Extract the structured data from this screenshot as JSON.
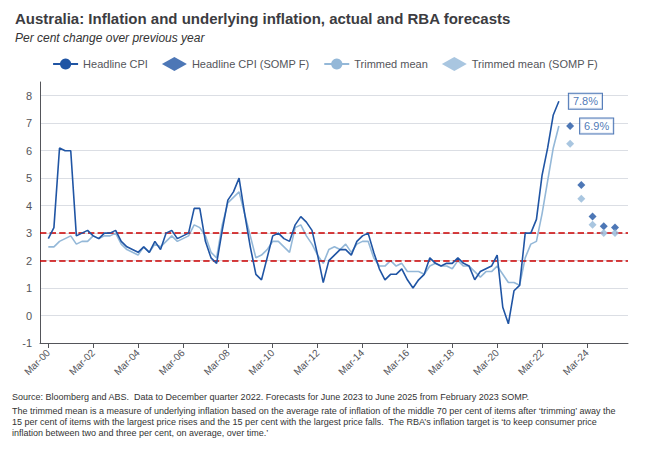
{
  "chart_data": {
    "type": "line",
    "title": "Australia: Inflation and underlying inflation, actual and RBA forecasts",
    "subtitle": "Per cent change over previous year",
    "series": [
      {
        "name": "Headline CPI",
        "type": "line",
        "marker": "none",
        "color": "#2055a4",
        "x": [
          2000.17,
          2000.42,
          2000.67,
          2000.92,
          2001.17,
          2001.42,
          2001.67,
          2001.92,
          2002.17,
          2002.42,
          2002.67,
          2002.92,
          2003.17,
          2003.42,
          2003.67,
          2003.92,
          2004.17,
          2004.42,
          2004.67,
          2004.92,
          2005.17,
          2005.42,
          2005.67,
          2005.92,
          2006.17,
          2006.42,
          2006.67,
          2006.92,
          2007.17,
          2007.42,
          2007.67,
          2007.92,
          2008.17,
          2008.42,
          2008.67,
          2008.92,
          2009.17,
          2009.42,
          2009.67,
          2009.92,
          2010.17,
          2010.42,
          2010.67,
          2010.92,
          2011.17,
          2011.42,
          2011.67,
          2011.92,
          2012.17,
          2012.42,
          2012.67,
          2012.92,
          2013.17,
          2013.42,
          2013.67,
          2013.92,
          2014.17,
          2014.42,
          2014.67,
          2014.92,
          2015.17,
          2015.42,
          2015.67,
          2015.92,
          2016.17,
          2016.42,
          2016.67,
          2016.92,
          2017.17,
          2017.42,
          2017.67,
          2017.92,
          2018.17,
          2018.42,
          2018.67,
          2018.92,
          2019.17,
          2019.42,
          2019.67,
          2019.92,
          2020.17,
          2020.42,
          2020.67,
          2020.92,
          2021.17,
          2021.42,
          2021.67,
          2021.92,
          2022.17,
          2022.42,
          2022.67,
          2022.92
        ],
        "values": [
          2.8,
          3.2,
          6.1,
          6.0,
          6.0,
          2.9,
          3.0,
          3.1,
          2.9,
          2.8,
          3.0,
          3.0,
          3.1,
          2.7,
          2.5,
          2.4,
          2.3,
          2.5,
          2.3,
          2.7,
          2.4,
          3.0,
          3.1,
          2.8,
          2.9,
          3.0,
          3.9,
          3.9,
          2.7,
          2.1,
          1.9,
          3.1,
          4.2,
          4.5,
          5.0,
          3.7,
          2.5,
          1.5,
          1.3,
          2.1,
          2.9,
          3.0,
          2.8,
          2.7,
          3.3,
          3.6,
          3.4,
          3.1,
          2.2,
          1.2,
          2.0,
          2.2,
          2.4,
          2.4,
          2.2,
          2.7,
          2.9,
          3.0,
          2.3,
          1.7,
          1.3,
          1.5,
          1.5,
          1.7,
          1.3,
          1.0,
          1.3,
          1.5,
          2.1,
          1.9,
          1.8,
          1.9,
          1.9,
          2.1,
          1.9,
          1.8,
          1.3,
          1.6,
          1.7,
          1.8,
          2.2,
          0.3,
          -0.3,
          0.9,
          1.1,
          3.0,
          3.0,
          3.5,
          5.1,
          6.1,
          7.3,
          7.8
        ]
      },
      {
        "name": "Headline CPI (SOMP F)",
        "type": "scatter",
        "marker": "diamond",
        "color": "#2055a4",
        "x": [
          2023.42,
          2023.92,
          2024.42,
          2024.92,
          2025.42
        ],
        "values": [
          6.9,
          4.75,
          3.6,
          3.25,
          3.2
        ]
      },
      {
        "name": "Trimmed mean",
        "type": "line",
        "marker": "none",
        "color": "#94b8d8",
        "x": [
          2000.17,
          2000.42,
          2000.67,
          2000.92,
          2001.17,
          2001.42,
          2001.67,
          2001.92,
          2002.17,
          2002.42,
          2002.67,
          2002.92,
          2003.17,
          2003.42,
          2003.67,
          2003.92,
          2004.17,
          2004.42,
          2004.67,
          2004.92,
          2005.17,
          2005.42,
          2005.67,
          2005.92,
          2006.17,
          2006.42,
          2006.67,
          2006.92,
          2007.17,
          2007.42,
          2007.67,
          2007.92,
          2008.17,
          2008.42,
          2008.67,
          2008.92,
          2009.17,
          2009.42,
          2009.67,
          2009.92,
          2010.17,
          2010.42,
          2010.67,
          2010.92,
          2011.17,
          2011.42,
          2011.67,
          2011.92,
          2012.17,
          2012.42,
          2012.67,
          2012.92,
          2013.17,
          2013.42,
          2013.67,
          2013.92,
          2014.17,
          2014.42,
          2014.67,
          2014.92,
          2015.17,
          2015.42,
          2015.67,
          2015.92,
          2016.17,
          2016.42,
          2016.67,
          2016.92,
          2017.17,
          2017.42,
          2017.67,
          2017.92,
          2018.17,
          2018.42,
          2018.67,
          2018.92,
          2019.17,
          2019.42,
          2019.67,
          2019.92,
          2020.17,
          2020.42,
          2020.67,
          2020.92,
          2021.17,
          2021.42,
          2021.67,
          2021.92,
          2022.17,
          2022.42,
          2022.67,
          2022.92
        ],
        "values": [
          2.5,
          2.5,
          2.7,
          2.8,
          2.9,
          2.6,
          2.7,
          2.7,
          2.9,
          2.8,
          2.9,
          2.9,
          3.0,
          2.6,
          2.4,
          2.3,
          2.2,
          2.5,
          2.3,
          2.6,
          2.5,
          2.7,
          2.9,
          2.7,
          2.8,
          2.9,
          3.3,
          3.2,
          2.9,
          2.3,
          2.1,
          3.3,
          4.1,
          4.3,
          4.5,
          3.7,
          2.9,
          2.1,
          2.2,
          2.4,
          2.7,
          2.7,
          2.5,
          2.3,
          3.2,
          3.3,
          2.9,
          2.6,
          2.2,
          1.9,
          2.4,
          2.5,
          2.4,
          2.6,
          2.3,
          2.6,
          2.7,
          2.7,
          2.1,
          1.8,
          1.8,
          2.0,
          1.8,
          1.9,
          1.6,
          1.6,
          1.6,
          1.5,
          1.8,
          1.9,
          1.8,
          1.8,
          1.7,
          2.0,
          1.8,
          1.8,
          1.6,
          1.4,
          1.6,
          1.6,
          1.8,
          1.5,
          1.2,
          1.2,
          1.1,
          2.1,
          2.6,
          2.7,
          3.7,
          4.9,
          6.1,
          6.9
        ]
      },
      {
        "name": "Trimmed mean (SOMP F)",
        "type": "scatter",
        "marker": "diamond",
        "color": "#94b8d8",
        "x": [
          2023.42,
          2023.92,
          2024.42,
          2024.92,
          2025.42
        ],
        "values": [
          6.25,
          4.25,
          3.3,
          3.0,
          3.0
        ]
      }
    ],
    "reference_lines": [
      {
        "y": 2.0,
        "color": "#cc0000",
        "line_style": "dashed"
      },
      {
        "y": 3.0,
        "color": "#cc0000",
        "line_style": "dashed"
      }
    ],
    "annotations": [
      {
        "text": "7.8%",
        "x": 2022.92,
        "y": 7.8,
        "color": "#2055a4"
      },
      {
        "text": "6.9%",
        "x": 2023.42,
        "y": 6.9,
        "color": "#2055a4"
      }
    ],
    "footnotes": [
      "Source: Bloomberg and ABS.  Data to December quarter 2022. Forecasts for June 2023 to June 2025 from February 2023 SOMP.",
      "The trimmed mean is a measure of underlying inflation based on the average rate of inflation of the middle 70 per cent of items after ‘trimming’ away the 15 per cent of items with the largest price rises and the 15 per cent with the largest price falls.  The RBA’s inflation target is ‘to keep consumer price inflation between two and three per cent, on average, over time.’"
    ],
    "xlim": [
      1999.8,
      2026.0
    ],
    "xticks": [
      {
        "value": 2000.17,
        "label": "Mar-00"
      },
      {
        "value": 2002.17,
        "label": "Mar-02"
      },
      {
        "value": 2004.17,
        "label": "Mar-04"
      },
      {
        "value": 2006.17,
        "label": "Mar-06"
      },
      {
        "value": 2008.17,
        "label": "Mar-08"
      },
      {
        "value": 2010.17,
        "label": "Mar-10"
      },
      {
        "value": 2012.17,
        "label": "Mar-12"
      },
      {
        "value": 2014.17,
        "label": "Mar-14"
      },
      {
        "value": 2016.17,
        "label": "Mar-16"
      },
      {
        "value": 2018.17,
        "label": "Mar-18"
      },
      {
        "value": 2020.17,
        "label": "Mar-20"
      },
      {
        "value": 2022.17,
        "label": "Mar-22"
      },
      {
        "value": 2024.17,
        "label": "Mar-24"
      }
    ],
    "ylim": [
      -1,
      8.5
    ],
    "yticks": [
      -1,
      0,
      1,
      2,
      3,
      4,
      5,
      6,
      7,
      8
    ],
    "grid": true,
    "legend": "top"
  }
}
